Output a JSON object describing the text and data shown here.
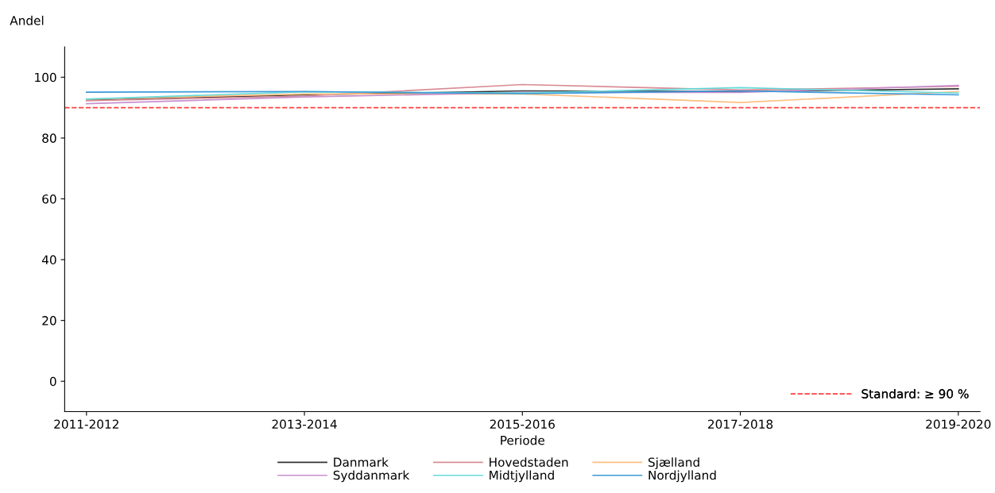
{
  "chart_data": {
    "type": "line",
    "ylabel": "Andel",
    "xlabel": "Periode",
    "categories": [
      "2011-2012",
      "2013-2014",
      "2015-2016",
      "2017-2018",
      "2019-2020"
    ],
    "series": [
      {
        "name": "Danmark",
        "color": "#333333",
        "values": [
          92.5,
          94.2,
          95.5,
          95.3,
          96.2
        ]
      },
      {
        "name": "Hovedstaden",
        "color": "#d98c94",
        "values": [
          92.3,
          93.8,
          97.6,
          95.8,
          97.0
        ]
      },
      {
        "name": "Sjælland",
        "color": "#fdbf7f",
        "values": [
          92.8,
          94.5,
          94.5,
          91.7,
          95.3
        ]
      },
      {
        "name": "Syddanmark",
        "color": "#c88fce",
        "values": [
          91.3,
          93.5,
          95.0,
          95.0,
          97.3
        ]
      },
      {
        "name": "Midtjylland",
        "color": "#66d9d9",
        "values": [
          92.8,
          95.2,
          94.8,
          96.6,
          94.8
        ]
      },
      {
        "name": "Nordjylland",
        "color": "#3a9ad9",
        "values": [
          95.1,
          95.3,
          94.6,
          95.5,
          94.2
        ]
      }
    ],
    "ylim": [
      -10,
      110
    ],
    "yticks": [
      0,
      20,
      40,
      60,
      80,
      100
    ],
    "ref_lines": [
      {
        "axis": "y",
        "value": 90,
        "label": "Standard: ≥ 90 %",
        "color": "#ff4040",
        "line_style": "dashed"
      }
    ],
    "legend": "bottom",
    "grid": false
  }
}
